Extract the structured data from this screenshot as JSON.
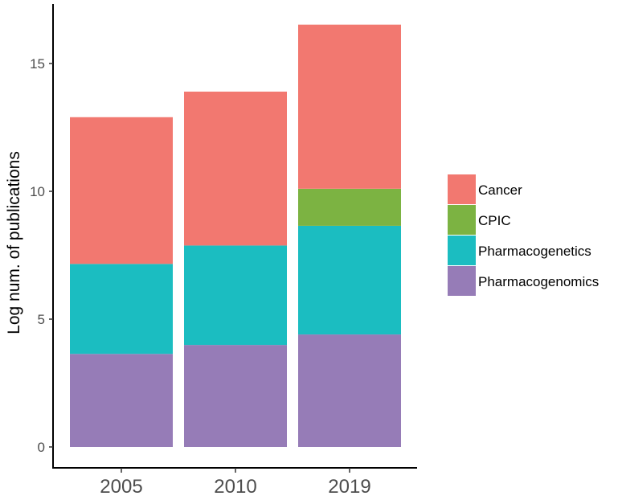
{
  "chart_data": {
    "type": "bar",
    "stacked": true,
    "title": "",
    "xlabel": "",
    "ylabel": "Log num. of publications",
    "categories": [
      "2005",
      "2010",
      "2019"
    ],
    "ylim": [
      0,
      17
    ],
    "yticks": [
      "0",
      "5",
      "10",
      "15"
    ],
    "grid": false,
    "legend_position": "right",
    "series": [
      {
        "name": "Pharmacogenomics",
        "color": "#967CB7",
        "values": [
          3.64,
          3.99,
          4.4
        ]
      },
      {
        "name": "Pharmacogenetics",
        "color": "#1BBDC1",
        "values": [
          3.52,
          3.89,
          4.25
        ]
      },
      {
        "name": "CPIC",
        "color": "#7CB342",
        "values": [
          0,
          0,
          1.45
        ]
      },
      {
        "name": "Cancer",
        "color": "#F27870",
        "values": [
          5.74,
          6.02,
          6.42
        ]
      }
    ],
    "legend_order": [
      "Cancer",
      "CPIC",
      "Pharmacogenetics",
      "Pharmacogenomics"
    ]
  }
}
